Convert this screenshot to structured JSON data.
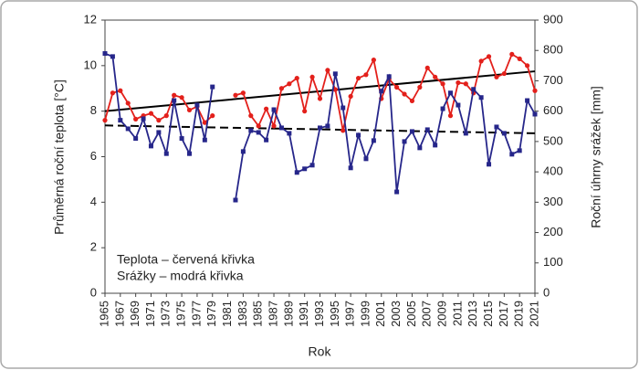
{
  "chart_data": {
    "type": "line",
    "xlabel": "Rok",
    "ylabel": "Průměrná roční teplota [°C]",
    "y2label": "Roční úhrny srážek [mm]",
    "annotations": [
      "Teplota – červená křivka",
      "Srážky – modrá křivka"
    ],
    "x": [
      1965,
      1966,
      1967,
      1968,
      1969,
      1970,
      1971,
      1972,
      1973,
      1974,
      1975,
      1976,
      1977,
      1978,
      1979,
      1980,
      1981,
      1982,
      1983,
      1984,
      1985,
      1986,
      1987,
      1988,
      1989,
      1990,
      1991,
      1992,
      1993,
      1994,
      1995,
      1996,
      1997,
      1998,
      1999,
      2000,
      2001,
      2002,
      2003,
      2004,
      2005,
      2006,
      2007,
      2008,
      2009,
      2010,
      2011,
      2012,
      2013,
      2014,
      2015,
      2016,
      2017,
      2018,
      2019,
      2020,
      2021
    ],
    "xlim": [
      1965,
      2021
    ],
    "xticks": [
      1965,
      1967,
      1969,
      1971,
      1973,
      1975,
      1977,
      1979,
      1981,
      1983,
      1985,
      1987,
      1989,
      1991,
      1993,
      1995,
      1997,
      1999,
      2001,
      2003,
      2005,
      2007,
      2009,
      2011,
      2013,
      2015,
      2017,
      2019,
      2021
    ],
    "ylim": [
      0,
      12
    ],
    "yticks": [
      0,
      2,
      4,
      6,
      8,
      10,
      12
    ],
    "y2lim": [
      0,
      900
    ],
    "y2ticks": [
      0,
      100,
      200,
      300,
      400,
      500,
      600,
      700,
      800,
      900
    ],
    "series": [
      {
        "color": "#e3201b",
        "marker": "circle",
        "axis": "y",
        "values": [
          7.6,
          8.8,
          8.9,
          8.35,
          7.65,
          7.8,
          7.9,
          7.6,
          7.8,
          8.7,
          8.6,
          8.05,
          8.2,
          7.5,
          7.8,
          null,
          null,
          8.7,
          8.8,
          7.8,
          7.35,
          8.1,
          7.35,
          9.0,
          9.2,
          9.45,
          8.0,
          9.5,
          8.55,
          9.8,
          8.95,
          7.15,
          8.65,
          9.45,
          9.6,
          10.25,
          8.55,
          9.4,
          9.05,
          8.75,
          8.45,
          9.05,
          9.9,
          9.5,
          9.2,
          7.8,
          9.25,
          9.2,
          8.8,
          10.2,
          10.4,
          9.5,
          9.65,
          10.5,
          10.3,
          10.0,
          8.9
        ]
      },
      {
        "color": "#26268a",
        "marker": "square",
        "axis": "y2",
        "values": [
          790,
          780,
          570,
          542,
          510,
          575,
          485,
          530,
          460,
          635,
          510,
          460,
          620,
          505,
          680,
          null,
          null,
          307,
          467,
          536,
          530,
          505,
          605,
          545,
          527,
          398,
          410,
          422,
          545,
          551,
          723,
          611,
          413,
          521,
          443,
          503,
          666,
          714,
          334,
          500,
          533,
          479,
          539,
          488,
          608,
          660,
          620,
          527,
          672,
          645,
          425,
          548,
          527,
          458,
          470,
          635,
          590
        ]
      }
    ],
    "trend_lines": [
      {
        "axis": "y",
        "color": "#000000",
        "dashed": false,
        "x": [
          1965,
          2021
        ],
        "values": [
          8.0,
          9.75
        ]
      },
      {
        "axis": "y2",
        "color": "#000000",
        "dashed": true,
        "x": [
          1965,
          2021
        ],
        "values": [
          553,
          527
        ]
      }
    ]
  }
}
